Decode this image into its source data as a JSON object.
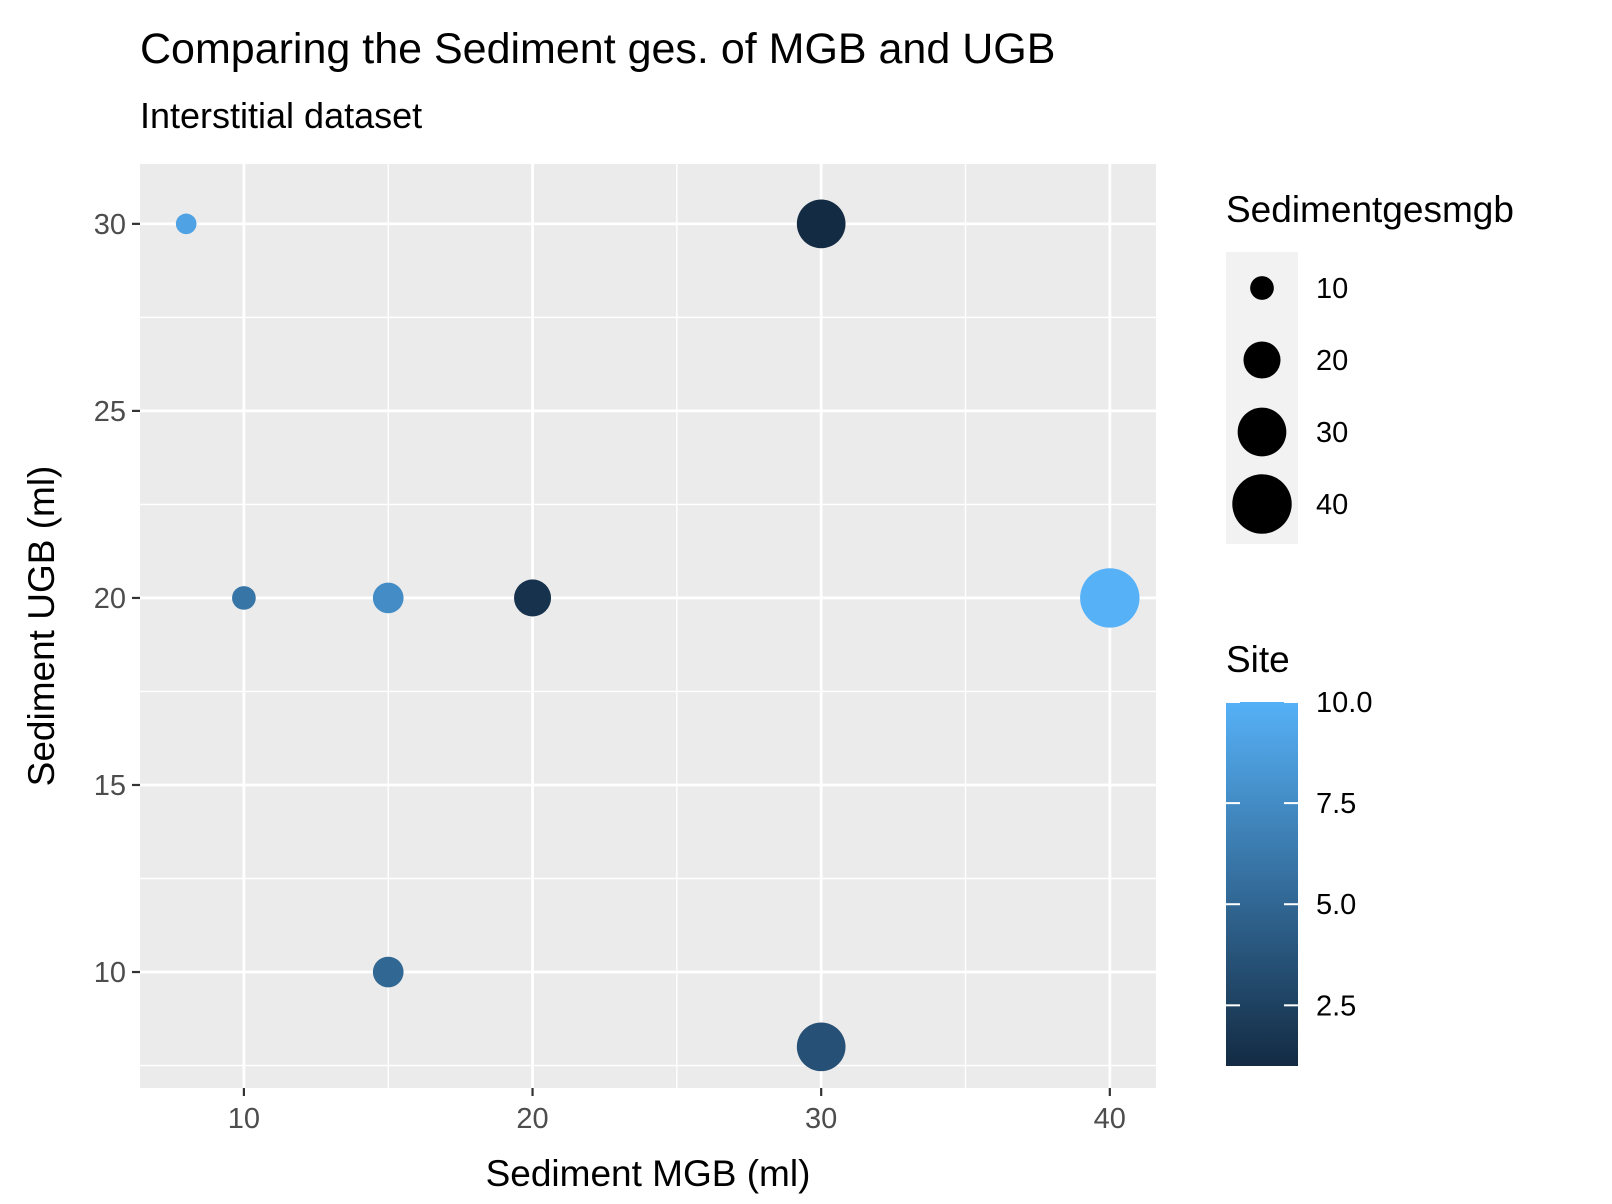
{
  "chart_data": {
    "type": "scatter",
    "title": "Comparing the Sediment ges. of MGB and UGB",
    "subtitle": "Interstitial dataset",
    "xlabel": "Sediment MGB (ml)",
    "ylabel": "Sediment UGB (ml)",
    "xlim": [
      6.4,
      41.6
    ],
    "ylim": [
      6.9,
      31.6
    ],
    "x_ticks": [
      10,
      20,
      30,
      40
    ],
    "y_ticks": [
      10,
      15,
      20,
      25,
      30
    ],
    "grid": true,
    "points": [
      {
        "x": 8,
        "y": 30,
        "size": 8,
        "site": 9
      },
      {
        "x": 30,
        "y": 30,
        "size": 30,
        "site": 1
      },
      {
        "x": 10,
        "y": 20,
        "size": 10,
        "site": 6
      },
      {
        "x": 15,
        "y": 20,
        "size": 15,
        "site": 7.5
      },
      {
        "x": 20,
        "y": 20,
        "size": 20,
        "site": 1.5
      },
      {
        "x": 40,
        "y": 20,
        "size": 40,
        "site": 10
      },
      {
        "x": 15,
        "y": 10,
        "size": 15,
        "site": 5
      },
      {
        "x": 30,
        "y": 8,
        "size": 30,
        "site": 3.5
      }
    ],
    "size_legend": {
      "title": "Sedimentgesmgb",
      "values": [
        10,
        20,
        30,
        40
      ],
      "labels": [
        "10",
        "20",
        "30",
        "40"
      ]
    },
    "color_legend": {
      "title": "Site",
      "range": [
        1,
        10
      ],
      "breaks": [
        2.5,
        5.0,
        7.5,
        10.0
      ],
      "labels": [
        "2.5",
        "5.0",
        "7.5",
        "10.0"
      ],
      "low_color": "#132B43",
      "high_color": "#56B1F7"
    },
    "legend_placement": "right"
  }
}
